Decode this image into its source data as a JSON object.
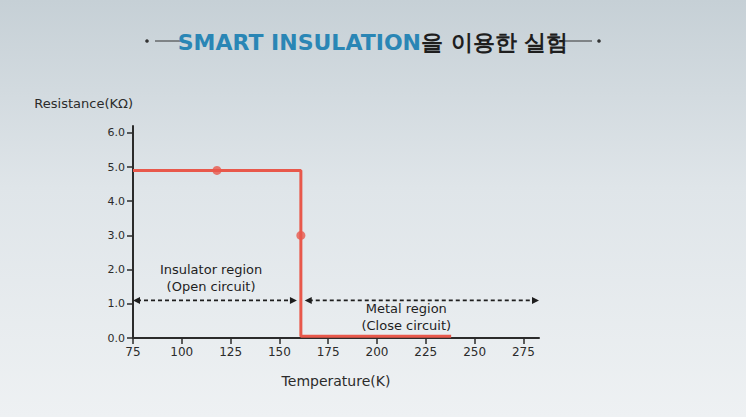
{
  "chart_data": {
    "type": "line",
    "title": "SMART INSULATION을 이용한 실험",
    "x_label": "Temperature(K)",
    "y_label": "Resistance(KΩ)",
    "xlim": [
      75,
      283
    ],
    "xticks": [
      75,
      100,
      125,
      150,
      175,
      200,
      225,
      250,
      275
    ],
    "ylim": [
      0,
      6.2
    ],
    "yticks": [
      {
        "value": 0,
        "label": "0.0"
      },
      {
        "value": 1,
        "label": "1.0"
      },
      {
        "value": 2,
        "label": "2.0"
      },
      {
        "value": 3,
        "label": "3.0"
      },
      {
        "value": 4,
        "label": "4.0"
      },
      {
        "value": 5,
        "label": "5.0"
      },
      {
        "value": 6,
        "label": "6.0"
      }
    ],
    "grid": false,
    "series": [
      {
        "type": "line",
        "color": "#e8584b",
        "x": [
          75,
          161,
          161,
          238
        ],
        "values": [
          4.9,
          4.9,
          0.05,
          0.05
        ]
      },
      {
        "type": "scatter",
        "color": "#e8584b",
        "marker": "circle",
        "x": [
          118,
          161
        ],
        "values": [
          4.9,
          3.0
        ]
      }
    ],
    "annotations": [
      {
        "text": "Insulator region\n(Open circuit)",
        "x": [
          75,
          159
        ],
        "y": 1.1,
        "text_x": 115,
        "text_y": 1.75
      },
      {
        "text": "Metal region\n(Close circuit)",
        "x": [
          163,
          283
        ],
        "y": 1.1,
        "text_x": 215,
        "text_y": 0.6
      }
    ]
  }
}
